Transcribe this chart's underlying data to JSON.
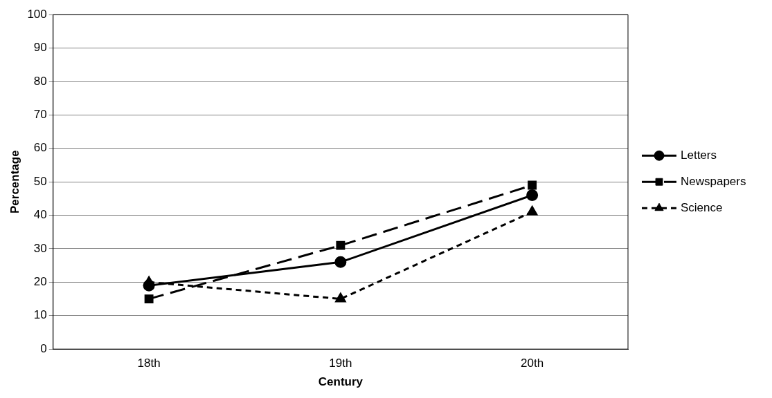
{
  "chart_data": {
    "type": "line",
    "xlabel": "Century",
    "ylabel": "Percentage",
    "categories": [
      "18th",
      "19th",
      "20th"
    ],
    "series": [
      {
        "name": "Letters",
        "color": "#000000",
        "values": [
          19,
          26,
          46
        ],
        "marker": "circle",
        "line_style": "solid"
      },
      {
        "name": "Newspapers",
        "color": "#000000",
        "values": [
          15,
          31,
          49
        ],
        "marker": "square",
        "line_style": "dashed"
      },
      {
        "name": "Science",
        "color": "#000000",
        "values": [
          20,
          15,
          41
        ],
        "marker": "triangle",
        "line_style": "dotted"
      }
    ],
    "ylim": [
      0,
      100
    ],
    "yticks": [
      0,
      10,
      20,
      30,
      40,
      50,
      60,
      70,
      80,
      90,
      100
    ],
    "grid": "y",
    "legend": "right"
  }
}
